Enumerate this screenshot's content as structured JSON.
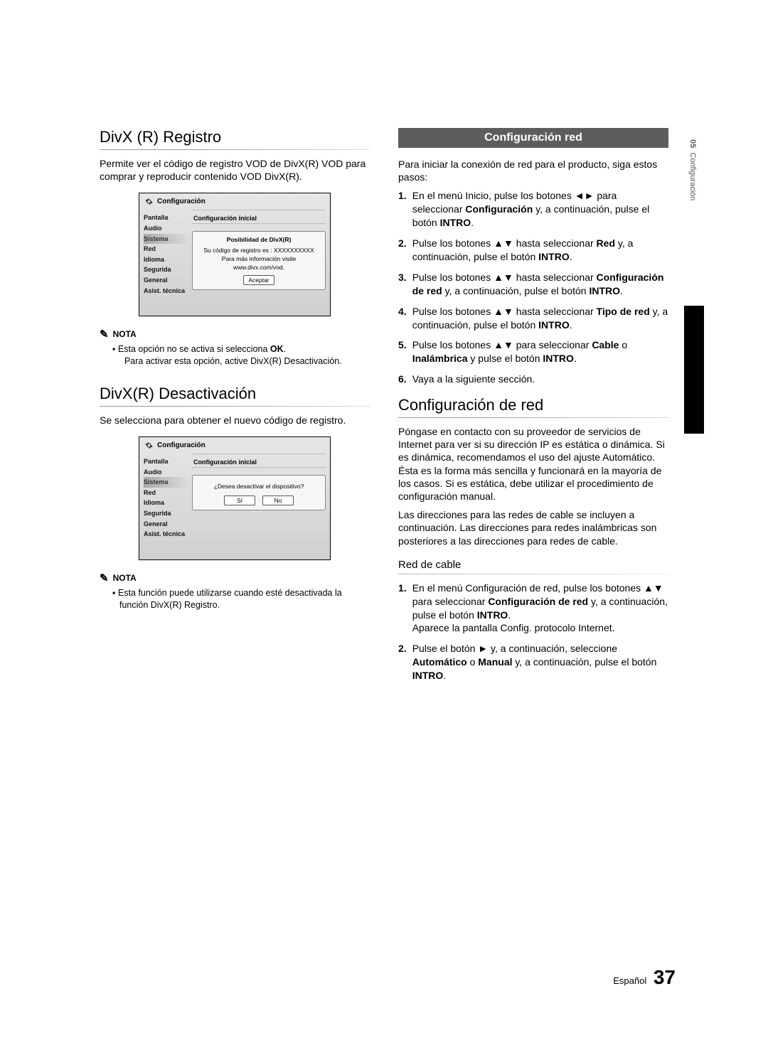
{
  "sideTab": {
    "num": "05",
    "label": "Configuración"
  },
  "page": {
    "lang": "Español",
    "num": "37"
  },
  "left": {
    "s1": {
      "title": "DivX (R) Registro",
      "p": "Permite ver el código de registro VOD de DivX(R) VOD para comprar y reproducir contenido VOD DivX(R)."
    },
    "tv1": {
      "header": "Configuración",
      "sub": "Configuración inicial",
      "menu": [
        "Pantalla",
        "Audio",
        "Sistema",
        "Red",
        "Idioma",
        "Segurida",
        "General",
        "Asist. técnica"
      ],
      "modalTitle": "Posibilidad de DivX(R)",
      "modalL1": "Su código de registro es : XXXXXXXXXX",
      "modalL2": "Para más información visite www.divx.com/vod.",
      "btn": "Aceptar"
    },
    "note1": {
      "head": "NOTA",
      "l1a": "Esta opción no se activa si selecciona ",
      "l1b": "OK",
      "l2": "Para activar esta opción, active DivX(R) Desactivación."
    },
    "s2": {
      "title": "DivX(R) Desactivación",
      "p": "Se selecciona para obtener el nuevo código de registro."
    },
    "tv2": {
      "modalQ": "¿Desea desactivar el dispositivo?",
      "yes": "Sí",
      "no": "No"
    },
    "note2": {
      "head": "NOTA",
      "txt": "Esta función puede utilizarse cuando esté desactivada la función DivX(R) Registro."
    }
  },
  "right": {
    "banner": "Configuración red",
    "intro": "Para iniciar la conexión de red para el producto, siga estos pasos:",
    "steps": [
      {
        "n": "1.",
        "html": "En el menú Inicio, pulse los botones ◄► para seleccionar <b>Configuración</b> y, a continuación, pulse el botón <b>INTRO</b>."
      },
      {
        "n": "2.",
        "html": "Pulse los botones ▲▼ hasta seleccionar <b>Red</b> y, a continuación, pulse el botón <b>INTRO</b>."
      },
      {
        "n": "3.",
        "html": "Pulse los botones ▲▼ hasta seleccionar <b>Configuración de red</b> y, a continuación, pulse el botón <b>INTRO</b>."
      },
      {
        "n": "4.",
        "html": "Pulse los botones ▲▼ hasta seleccionar <b>Tipo de red</b> y, a continuación, pulse el botón <b>INTRO</b>."
      },
      {
        "n": "5.",
        "html": "Pulse los botones ▲▼ para seleccionar <b>Cable</b> o <b>Inalámbrica</b> y pulse el botón <b>INTRO</b>."
      },
      {
        "n": "6.",
        "html": "Vaya a la siguiente sección."
      }
    ],
    "s2": {
      "title": "Configuración de red",
      "p1": "Póngase en contacto con su proveedor de servicios de Internet para ver si su dirección IP es estática o dinámica. Si es dinámica, recomendamos el uso del ajuste Automático. Ésta es la forma más sencilla y funcionará en la mayoría de los casos. Si es estática, debe utilizar el procedimiento de configuración manual.",
      "p2": "Las direcciones para las redes de cable se incluyen a continuación. Las direcciones para redes inalámbricas son posteriores a las direcciones para redes de cable."
    },
    "sub": "Red de cable",
    "steps2": [
      {
        "n": "1.",
        "html": "En el menú Configuración de red, pulse los botones ▲▼ para seleccionar <b>Configuración de red</b> y, a continuación, pulse el botón <b>INTRO</b>.<br>Aparece la pantalla Config. protocolo Internet."
      },
      {
        "n": "2.",
        "html": "Pulse el botón ► y, a continuación, seleccione <b>Automático</b> o <b>Manual</b> y, a continuación, pulse el botón <b>INTRO</b>."
      }
    ]
  }
}
